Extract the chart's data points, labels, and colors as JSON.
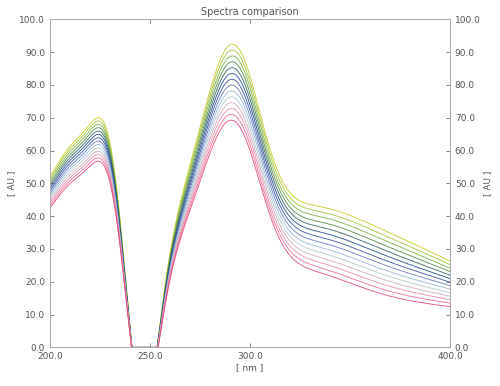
{
  "title": "Spectra comparison",
  "xlabel": "[ nm ]",
  "ylabel": "[ AU ]",
  "xmin": 200.0,
  "xmax": 400.0,
  "ymin": 0.0,
  "ymax": 100.0,
  "xticks": [
    200.0,
    250.0,
    300.0,
    400.0
  ],
  "yticks": [
    0.0,
    10.0,
    20.0,
    30.0,
    40.0,
    50.0,
    60.0,
    70.0,
    80.0,
    90.0,
    100.0
  ],
  "background_color": "#ffffff",
  "num_traces": 14,
  "colors": [
    "#c8c820",
    "#a0c030",
    "#78b040",
    "#508840",
    "#306060",
    "#184888",
    "#3050a0",
    "#6878c0",
    "#90b8d8",
    "#b0c8c8",
    "#d0a8c0",
    "#e888b0",
    "#f06890",
    "#e04878"
  ],
  "title_fontsize": 7,
  "axis_fontsize": 6.5,
  "tick_fontsize": 6.5,
  "spine_color": "#aaaaaa",
  "tick_color": "#555555"
}
